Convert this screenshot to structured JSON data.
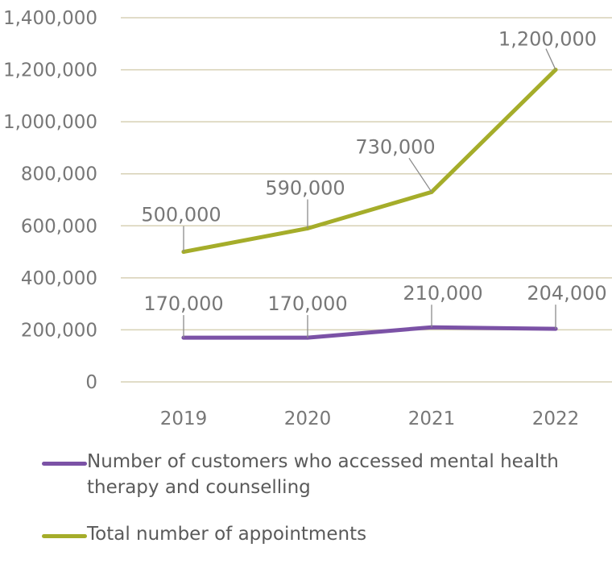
{
  "chart_data": {
    "type": "line",
    "title": "",
    "xlabel": "",
    "ylabel": "",
    "categories": [
      "2019",
      "2020",
      "2021",
      "2022"
    ],
    "ylim": [
      0,
      1400000
    ],
    "yticks": [
      0,
      200000,
      400000,
      600000,
      800000,
      1000000,
      1200000,
      1400000
    ],
    "ytick_labels": [
      "0",
      "200,000",
      "400,000",
      "600,000",
      "800,000",
      "1,000,000",
      "1,200,000",
      "1,400,000"
    ],
    "grid": true,
    "legend_position": "bottom",
    "series": [
      {
        "name": "Number of customers who accessed mental health therapy and counselling",
        "values": [
          170000,
          170000,
          210000,
          204000
        ],
        "labels": [
          "170,000",
          "170,000",
          "210,000",
          "204,000"
        ],
        "color": "#7b52a6"
      },
      {
        "name": "Total number of appointments",
        "values": [
          500000,
          590000,
          730000,
          1200000
        ],
        "labels": [
          "500,000",
          "590,000",
          "730,000",
          "1,200,000"
        ],
        "color": "#a5ad2a"
      }
    ]
  },
  "colors": {
    "grid": "#d7d1b5",
    "text": "#777777"
  }
}
